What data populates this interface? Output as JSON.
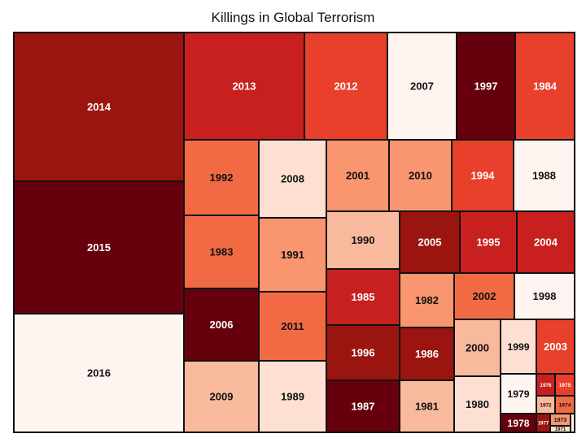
{
  "chart_data": {
    "type": "treemap",
    "title": "Killings in Global Terrorism",
    "palette": {
      "1": "#fff5f0",
      "2": "#fde0d2",
      "3": "#f9b99c",
      "4": "#f9956f",
      "5": "#f26a44",
      "6": "#e8402b",
      "7": "#c8201e",
      "8": "#9b1510",
      "9": "#67000d"
    },
    "cells": [
      {
        "label": "2014",
        "shade": 8
      },
      {
        "label": "2015",
        "shade": 9
      },
      {
        "label": "2016",
        "shade": 1
      },
      {
        "label": "2013",
        "shade": 7
      },
      {
        "label": "2012",
        "shade": 6
      },
      {
        "label": "2007",
        "shade": 1
      },
      {
        "label": "1997",
        "shade": 9
      },
      {
        "label": "1984",
        "shade": 6
      },
      {
        "label": "1992",
        "shade": 5
      },
      {
        "label": "1983",
        "shade": 5
      },
      {
        "label": "2006",
        "shade": 9
      },
      {
        "label": "2009",
        "shade": 3
      },
      {
        "label": "2008",
        "shade": 2
      },
      {
        "label": "1991",
        "shade": 4
      },
      {
        "label": "2011",
        "shade": 5
      },
      {
        "label": "1989",
        "shade": 2
      },
      {
        "label": "2001",
        "shade": 4
      },
      {
        "label": "2010",
        "shade": 4
      },
      {
        "label": "1994",
        "shade": 6
      },
      {
        "label": "1988",
        "shade": 1
      },
      {
        "label": "1990",
        "shade": 3
      },
      {
        "label": "2005",
        "shade": 8
      },
      {
        "label": "1995",
        "shade": 7
      },
      {
        "label": "2004",
        "shade": 7
      },
      {
        "label": "1985",
        "shade": 7
      },
      {
        "label": "1996",
        "shade": 8
      },
      {
        "label": "1987",
        "shade": 9
      },
      {
        "label": "1982",
        "shade": 4
      },
      {
        "label": "1986",
        "shade": 8
      },
      {
        "label": "1981",
        "shade": 3
      },
      {
        "label": "2002",
        "shade": 5
      },
      {
        "label": "1998",
        "shade": 1
      },
      {
        "label": "2000",
        "shade": 3
      },
      {
        "label": "1980",
        "shade": 2
      },
      {
        "label": "1999",
        "shade": 2
      },
      {
        "label": "2003",
        "shade": 6
      },
      {
        "label": "1979",
        "shade": 1
      },
      {
        "label": "1978",
        "shade": 9
      },
      {
        "label": "1976",
        "shade": 7
      },
      {
        "label": "1975",
        "shade": 6
      },
      {
        "label": "1972",
        "shade": 3
      },
      {
        "label": "1974",
        "shade": 5
      },
      {
        "label": "1977",
        "shade": 8
      },
      {
        "label": "1973",
        "shade": 4
      },
      {
        "label": "1971",
        "shade": 2
      },
      {
        "label": "",
        "shade": 1
      }
    ]
  }
}
